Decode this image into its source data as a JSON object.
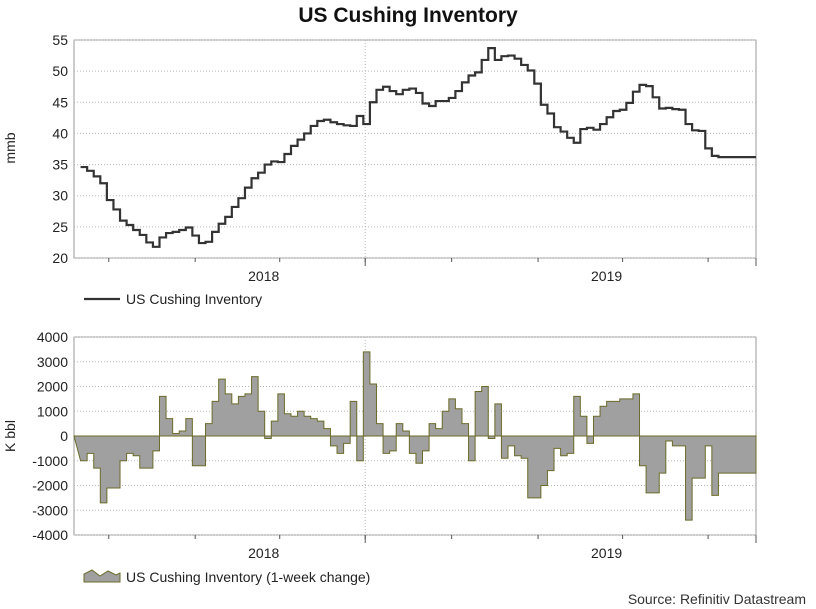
{
  "title": "US Cushing Inventory",
  "source": "Source: Refinitiv Datastream",
  "colors": {
    "line": "#333333",
    "area_fill": "#a0a0a0",
    "area_stroke": "#6b6b2a",
    "grid": "#b8b8b8",
    "axis": "#555555"
  },
  "chart_data": [
    {
      "type": "line",
      "ylabel": "mmb",
      "ylim": [
        20,
        55
      ],
      "yticks": [
        "20",
        "25",
        "30",
        "35",
        "40",
        "45",
        "50",
        "55"
      ],
      "x_tick_labels": [
        "2018",
        "2019"
      ],
      "grid": true,
      "legend": "bottom-left",
      "series": [
        {
          "name": "US Cushing Inventory",
          "x": [
            "2017-09-01",
            "2017-09-08",
            "2017-09-15",
            "2017-09-22",
            "2017-09-29",
            "2017-10-06",
            "2017-10-13",
            "2017-10-20",
            "2017-10-27",
            "2017-11-03",
            "2017-11-10",
            "2017-11-17",
            "2017-11-24",
            "2017-12-01",
            "2017-12-08",
            "2017-12-15",
            "2017-12-22",
            "2017-12-29",
            "2018-01-05",
            "2018-01-12",
            "2018-01-19",
            "2018-01-26",
            "2018-02-02",
            "2018-02-09",
            "2018-02-16",
            "2018-02-23",
            "2018-03-02",
            "2018-03-09",
            "2018-03-16",
            "2018-03-23",
            "2018-03-30",
            "2018-04-06",
            "2018-04-13",
            "2018-04-20",
            "2018-04-27",
            "2018-05-04",
            "2018-05-11",
            "2018-05-18",
            "2018-05-25",
            "2018-06-01",
            "2018-06-08",
            "2018-06-15",
            "2018-06-22",
            "2018-06-29",
            "2018-07-06",
            "2018-07-13",
            "2018-07-20",
            "2018-07-27",
            "2018-08-03",
            "2018-08-10",
            "2018-08-17",
            "2018-08-24",
            "2018-08-31",
            "2018-09-07",
            "2018-09-14",
            "2018-09-21",
            "2018-09-28",
            "2018-10-05",
            "2018-10-12",
            "2018-10-19",
            "2018-10-26",
            "2018-11-02",
            "2018-11-09",
            "2018-11-16",
            "2018-11-23",
            "2018-11-30",
            "2018-12-07",
            "2018-12-14",
            "2018-12-21",
            "2018-12-28",
            "2019-01-04",
            "2019-01-11",
            "2019-01-18",
            "2019-01-25",
            "2019-02-01",
            "2019-02-08",
            "2019-02-15",
            "2019-02-22",
            "2019-03-01",
            "2019-03-08",
            "2019-03-15",
            "2019-03-22",
            "2019-03-29",
            "2019-04-05",
            "2019-04-12",
            "2019-04-19",
            "2019-04-26",
            "2019-05-03",
            "2019-05-10",
            "2019-05-17",
            "2019-05-24",
            "2019-05-31",
            "2019-06-07",
            "2019-06-14",
            "2019-06-21",
            "2019-06-28",
            "2019-07-05",
            "2019-07-12",
            "2019-07-19",
            "2019-07-26",
            "2019-08-02",
            "2019-08-09",
            "2019-08-16"
          ],
          "values": [
            34.6,
            34.0,
            33.1,
            32.0,
            29.3,
            27.8,
            26.0,
            25.3,
            24.5,
            23.7,
            22.5,
            21.8,
            23.3,
            24.0,
            24.2,
            24.5,
            24.9,
            23.6,
            22.4,
            22.6,
            24.2,
            25.5,
            26.6,
            28.2,
            29.6,
            31.3,
            32.8,
            33.7,
            35.0,
            35.5,
            35.4,
            36.7,
            38.0,
            39.0,
            40.0,
            41.2,
            42.0,
            42.2,
            41.8,
            41.5,
            41.3,
            41.2,
            42.8,
            41.5,
            45.0,
            47.0,
            47.5,
            46.8,
            46.3,
            47.0,
            47.2,
            46.5,
            44.8,
            44.4,
            45.2,
            45.2,
            45.7,
            46.8,
            48.2,
            49.3,
            49.8,
            51.8,
            53.7,
            51.8,
            52.4,
            52.5,
            52.0,
            51.0,
            50.1,
            48.0,
            44.6,
            43.2,
            41.0,
            40.3,
            39.3,
            38.5,
            40.7,
            40.9,
            40.6,
            41.5,
            42.6,
            43.6,
            43.8,
            44.9,
            46.7,
            47.8,
            47.6,
            45.8,
            44.0,
            44.1,
            43.9,
            43.8,
            41.5,
            40.5,
            40.4,
            37.6,
            36.4,
            36.2,
            36.2,
            36.2,
            36.2,
            36.2,
            36.2
          ]
        }
      ]
    },
    {
      "type": "area",
      "ylabel": "K bbl",
      "ylim": [
        -4000,
        4000
      ],
      "yticks": [
        "-4000",
        "-3000",
        "-2000",
        "-1000",
        "0",
        "1000",
        "2000",
        "3000",
        "4000"
      ],
      "x_tick_labels": [
        "2018",
        "2019"
      ],
      "grid": true,
      "legend": "bottom-left",
      "series": [
        {
          "name": "US Cushing Inventory (1-week change)",
          "x": [
            "2017-09-01",
            "2017-09-08",
            "2017-09-15",
            "2017-09-22",
            "2017-09-29",
            "2017-10-06",
            "2017-10-13",
            "2017-10-20",
            "2017-10-27",
            "2017-11-03",
            "2017-11-10",
            "2017-11-17",
            "2017-11-24",
            "2017-12-01",
            "2017-12-08",
            "2017-12-15",
            "2017-12-22",
            "2017-12-29",
            "2018-01-05",
            "2018-01-12",
            "2018-01-19",
            "2018-01-26",
            "2018-02-02",
            "2018-02-09",
            "2018-02-16",
            "2018-02-23",
            "2018-03-02",
            "2018-03-09",
            "2018-03-16",
            "2018-03-23",
            "2018-03-30",
            "2018-04-06",
            "2018-04-13",
            "2018-04-20",
            "2018-04-27",
            "2018-05-04",
            "2018-05-11",
            "2018-05-18",
            "2018-05-25",
            "2018-06-01",
            "2018-06-08",
            "2018-06-15",
            "2018-06-22",
            "2018-06-29",
            "2018-07-06",
            "2018-07-13",
            "2018-07-20",
            "2018-07-27",
            "2018-08-03",
            "2018-08-10",
            "2018-08-17",
            "2018-08-24",
            "2018-08-31",
            "2018-09-07",
            "2018-09-14",
            "2018-09-21",
            "2018-09-28",
            "2018-10-05",
            "2018-10-12",
            "2018-10-19",
            "2018-10-26",
            "2018-11-02",
            "2018-11-09",
            "2018-11-16",
            "2018-11-23",
            "2018-11-30",
            "2018-12-07",
            "2018-12-14",
            "2018-12-21",
            "2018-12-28",
            "2019-01-04",
            "2019-01-11",
            "2019-01-18",
            "2019-01-25",
            "2019-02-01",
            "2019-02-08",
            "2019-02-15",
            "2019-02-22",
            "2019-03-01",
            "2019-03-08",
            "2019-03-15",
            "2019-03-22",
            "2019-03-29",
            "2019-04-05",
            "2019-04-12",
            "2019-04-19",
            "2019-04-26",
            "2019-05-03",
            "2019-05-10",
            "2019-05-17",
            "2019-05-24",
            "2019-05-31",
            "2019-06-07",
            "2019-06-14",
            "2019-06-21",
            "2019-06-28",
            "2019-07-05",
            "2019-07-12",
            "2019-07-19",
            "2019-07-26",
            "2019-08-02",
            "2019-08-09",
            "2019-08-16"
          ],
          "values": [
            -1000,
            -700,
            -1300,
            -2700,
            -2100,
            -2100,
            -1000,
            -700,
            -800,
            -1300,
            -1300,
            -600,
            1600,
            700,
            100,
            200,
            700,
            -1200,
            -1200,
            500,
            1400,
            2300,
            1700,
            1300,
            1600,
            1700,
            2400,
            1000,
            -100,
            600,
            1700,
            900,
            800,
            1000,
            800,
            700,
            600,
            300,
            -400,
            -700,
            -300,
            1400,
            -1000,
            3400,
            2100,
            500,
            -700,
            -600,
            500,
            200,
            -700,
            -1100,
            -600,
            500,
            300,
            1000,
            1500,
            1100,
            500,
            -1000,
            1800,
            2000,
            -100,
            1300,
            -900,
            -400,
            -800,
            -900,
            -2500,
            -2500,
            -2000,
            -1400,
            -500,
            -800,
            -700,
            1600,
            800,
            -300,
            800,
            1200,
            1400,
            1400,
            1500,
            1500,
            1700,
            -1200,
            -2300,
            -2300,
            -1500,
            -200,
            -400,
            -400,
            -3400,
            -1700,
            -1700,
            -400,
            -2400,
            -1500,
            -1500,
            -1500,
            -1500,
            -1500,
            -1500
          ]
        }
      ]
    }
  ],
  "legend": {
    "top_label": "US Cushing Inventory",
    "bottom_label": "US Cushing Inventory (1-week change)"
  }
}
